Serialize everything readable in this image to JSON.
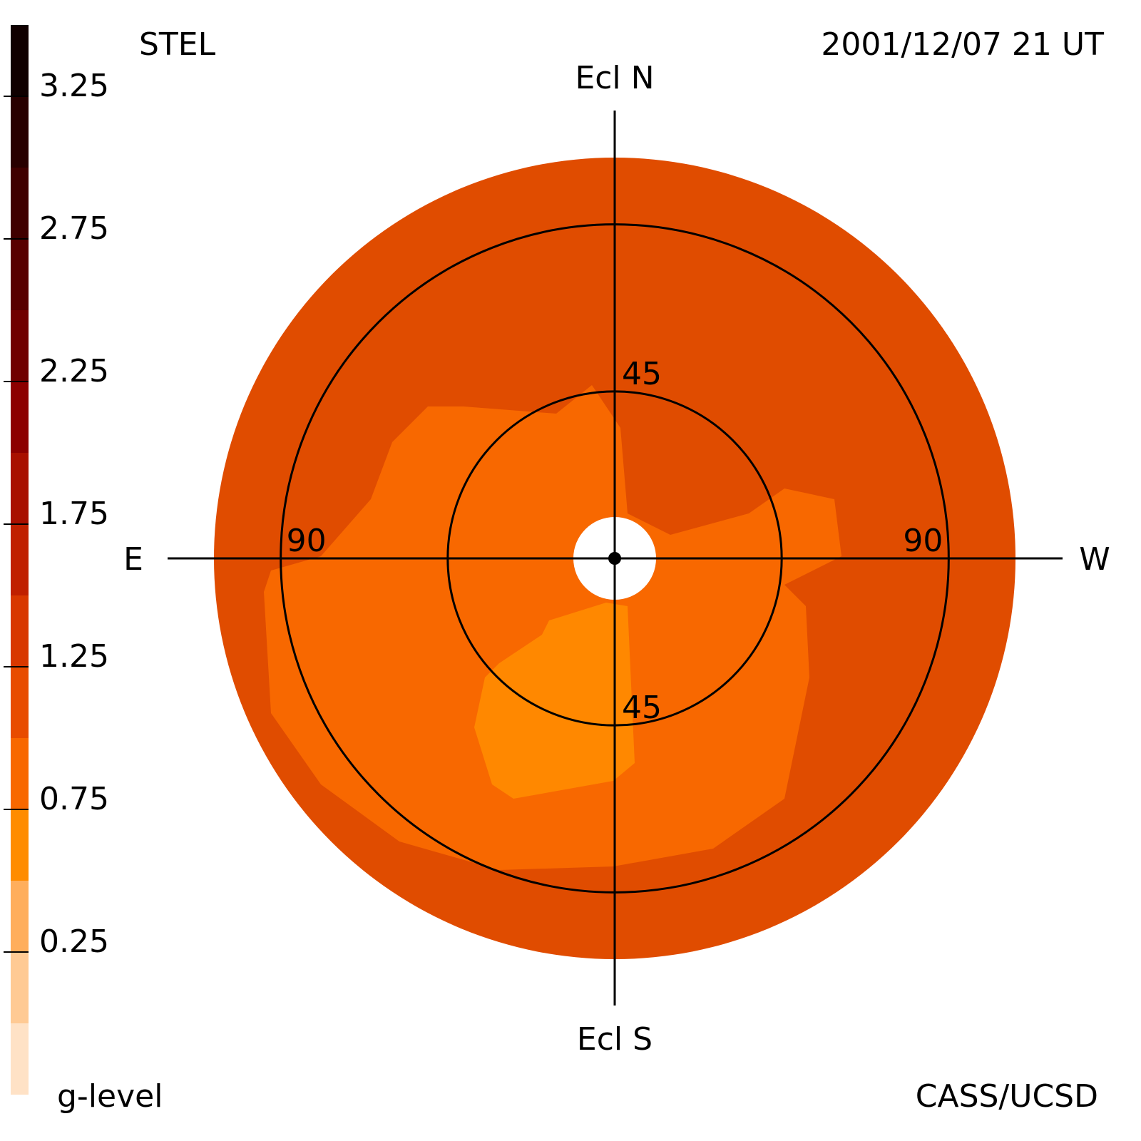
{
  "chart_data": {
    "type": "sky-map",
    "title": "STEL",
    "subtitle": "2001/12/07 21 UT",
    "colorbar_label": "g-level",
    "credit": "CASS/UCSD",
    "directions": {
      "top": "Ecl N",
      "bottom": "Ecl S",
      "left": "E",
      "right": "W"
    },
    "levels": [
      -0.25,
      0,
      0.25,
      0.5,
      0.75,
      1.0,
      1.25,
      1.5,
      1.75,
      2.0,
      2.25,
      2.5,
      2.75,
      3.0,
      3.25,
      3.5
    ],
    "colors": [
      "#ffe2c6",
      "#ffca94",
      "#ffae5c",
      "#ff8c00",
      "#f86800",
      "#e84c00",
      "#d83800",
      "#c02000",
      "#a81000",
      "#8c0000",
      "#700000",
      "#580000",
      "#400000",
      "#280000",
      "#100000"
    ],
    "clim": [
      -0.25,
      3.5
    ],
    "cticks": [
      0.25,
      0.75,
      1.25,
      1.75,
      2.25,
      2.75,
      3.25
    ],
    "rings": [
      45,
      90
    ],
    "rlim": [
      0,
      108
    ]
  }
}
